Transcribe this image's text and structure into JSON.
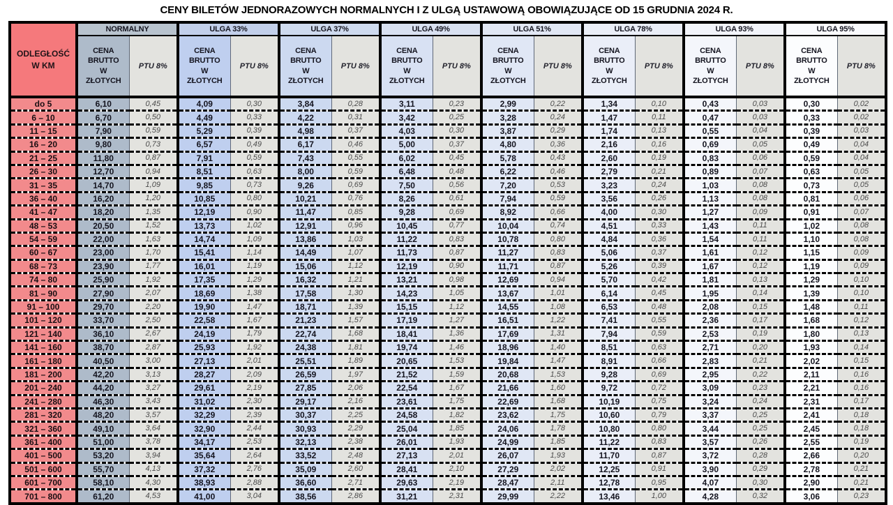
{
  "title": "CENY BILETÓW JEDNORAZOWYCH NORMALNYCH I Z ULGĄ USTAWOWĄ OBOWIĄZUJĄCE OD 15 GRUDNIA 2024 R.",
  "colors": {
    "distance_header_bg": "#f5797c",
    "distance_cell_bg": "#f28a8c",
    "ptu_bg": "#e3e3df",
    "price_text": "#14141f",
    "ptu_text": "#4c4c4c",
    "border": "#000000"
  },
  "table": {
    "distance_label": "ODLEGŁOŚĆ\nW KM",
    "price_label": "CENA\nBRUTTO\nW\nZŁOTYCH",
    "ptu_label": "PTU 8%",
    "groups": [
      {
        "label": "NORMALNY",
        "header_bg": "#b8c3ce",
        "price_bg": "#aebbca"
      },
      {
        "label": "ULGA 33%",
        "header_bg": "#c2cfea",
        "price_bg": "#bfcfef"
      },
      {
        "label": "ULGA 37%",
        "header_bg": "#cedaee",
        "price_bg": "#ccd9f0"
      },
      {
        "label": "ULGA 49%",
        "header_bg": "#d9e1f1",
        "price_bg": "#d8e1f3"
      },
      {
        "label": "ULGA 51%",
        "header_bg": "#e1e7f4",
        "price_bg": "#e0e7f5"
      },
      {
        "label": "ULGA 78%",
        "header_bg": "#eaeef7",
        "price_bg": "#eaeef8"
      },
      {
        "label": "ULGA 93%",
        "header_bg": "#f2f4fa",
        "price_bg": "#f4f6fb"
      },
      {
        "label": "ULGA 95%",
        "header_bg": "#f9fafd",
        "price_bg": "#fcfdfe"
      }
    ],
    "rows": [
      {
        "distance": "do 5",
        "values": [
          "6,10",
          "0,45",
          "4,09",
          "0,30",
          "3,84",
          "0,28",
          "3,11",
          "0,23",
          "2,99",
          "0,22",
          "1,34",
          "0,10",
          "0,43",
          "0,03",
          "0,30",
          "0,02"
        ]
      },
      {
        "distance": "6 – 10",
        "values": [
          "6,70",
          "0,50",
          "4,49",
          "0,33",
          "4,22",
          "0,31",
          "3,42",
          "0,25",
          "3,28",
          "0,24",
          "1,47",
          "0,11",
          "0,47",
          "0,03",
          "0,33",
          "0,02"
        ]
      },
      {
        "distance": "11 – 15",
        "values": [
          "7,90",
          "0,59",
          "5,29",
          "0,39",
          "4,98",
          "0,37",
          "4,03",
          "0,30",
          "3,87",
          "0,29",
          "1,74",
          "0,13",
          "0,55",
          "0,04",
          "0,39",
          "0,03"
        ]
      },
      {
        "distance": "16 – 20",
        "values": [
          "9,80",
          "0,73",
          "6,57",
          "0,49",
          "6,17",
          "0,46",
          "5,00",
          "0,37",
          "4,80",
          "0,36",
          "2,16",
          "0,16",
          "0,69",
          "0,05",
          "0,49",
          "0,04"
        ]
      },
      {
        "distance": "21 – 25",
        "values": [
          "11,80",
          "0,87",
          "7,91",
          "0,59",
          "7,43",
          "0,55",
          "6,02",
          "0,45",
          "5,78",
          "0,43",
          "2,60",
          "0,19",
          "0,83",
          "0,06",
          "0,59",
          "0,04"
        ]
      },
      {
        "distance": "26 – 30",
        "values": [
          "12,70",
          "0,94",
          "8,51",
          "0,63",
          "8,00",
          "0,59",
          "6,48",
          "0,48",
          "6,22",
          "0,46",
          "2,79",
          "0,21",
          "0,89",
          "0,07",
          "0,63",
          "0,05"
        ]
      },
      {
        "distance": "31 – 35",
        "values": [
          "14,70",
          "1,09",
          "9,85",
          "0,73",
          "9,26",
          "0,69",
          "7,50",
          "0,56",
          "7,20",
          "0,53",
          "3,23",
          "0,24",
          "1,03",
          "0,08",
          "0,73",
          "0,05"
        ]
      },
      {
        "distance": "36 – 40",
        "values": [
          "16,20",
          "1,20",
          "10,85",
          "0,80",
          "10,21",
          "0,76",
          "8,26",
          "0,61",
          "7,94",
          "0,59",
          "3,56",
          "0,26",
          "1,13",
          "0,08",
          "0,81",
          "0,06"
        ]
      },
      {
        "distance": "41 – 47",
        "values": [
          "18,20",
          "1,35",
          "12,19",
          "0,90",
          "11,47",
          "0,85",
          "9,28",
          "0,69",
          "8,92",
          "0,66",
          "4,00",
          "0,30",
          "1,27",
          "0,09",
          "0,91",
          "0,07"
        ]
      },
      {
        "distance": "48 – 53",
        "values": [
          "20,50",
          "1,52",
          "13,73",
          "1,02",
          "12,91",
          "0,96",
          "10,45",
          "0,77",
          "10,04",
          "0,74",
          "4,51",
          "0,33",
          "1,43",
          "0,11",
          "1,02",
          "0,08"
        ]
      },
      {
        "distance": "54 – 59",
        "values": [
          "22,00",
          "1,63",
          "14,74",
          "1,09",
          "13,86",
          "1,03",
          "11,22",
          "0,83",
          "10,78",
          "0,80",
          "4,84",
          "0,36",
          "1,54",
          "0,11",
          "1,10",
          "0,08"
        ]
      },
      {
        "distance": "60 – 67",
        "values": [
          "23,00",
          "1,70",
          "15,41",
          "1,14",
          "14,49",
          "1,07",
          "11,73",
          "0,87",
          "11,27",
          "0,83",
          "5,06",
          "0,37",
          "1,61",
          "0,12",
          "1,15",
          "0,09"
        ]
      },
      {
        "distance": "68 – 73",
        "values": [
          "23,90",
          "1,77",
          "16,01",
          "1,19",
          "15,06",
          "1,12",
          "12,19",
          "0,90",
          "11,71",
          "0,87",
          "5,26",
          "0,39",
          "1,67",
          "0,12",
          "1,19",
          "0,09"
        ]
      },
      {
        "distance": "74 – 80",
        "values": [
          "25,90",
          "1,92",
          "17,35",
          "1,29",
          "16,32",
          "1,21",
          "13,21",
          "0,98",
          "12,69",
          "0,94",
          "5,70",
          "0,42",
          "1,81",
          "0,13",
          "1,29",
          "0,10"
        ]
      },
      {
        "distance": "81 – 90",
        "values": [
          "27,90",
          "2,07",
          "18,69",
          "1,38",
          "17,58",
          "1,30",
          "14,23",
          "1,05",
          "13,67",
          "1,01",
          "6,14",
          "0,45",
          "1,95",
          "0,14",
          "1,39",
          "0,10"
        ]
      },
      {
        "distance": "91 – 100",
        "values": [
          "29,70",
          "2,20",
          "19,90",
          "1,47",
          "18,71",
          "1,39",
          "15,15",
          "1,12",
          "14,55",
          "1,08",
          "6,53",
          "0,48",
          "2,08",
          "0,15",
          "1,48",
          "0,11"
        ]
      },
      {
        "distance": "101 – 120",
        "values": [
          "33,70",
          "2,50",
          "22,58",
          "1,67",
          "21,23",
          "1,57",
          "17,19",
          "1,27",
          "16,51",
          "1,22",
          "7,41",
          "0,55",
          "2,36",
          "0,17",
          "1,68",
          "0,12"
        ]
      },
      {
        "distance": "121 – 140",
        "values": [
          "36,10",
          "2,67",
          "24,19",
          "1,79",
          "22,74",
          "1,68",
          "18,41",
          "1,36",
          "17,69",
          "1,31",
          "7,94",
          "0,59",
          "2,53",
          "0,19",
          "1,80",
          "0,13"
        ]
      },
      {
        "distance": "141 – 160",
        "values": [
          "38,70",
          "2,87",
          "25,93",
          "1,92",
          "24,38",
          "1,81",
          "19,74",
          "1,46",
          "18,96",
          "1,40",
          "8,51",
          "0,63",
          "2,71",
          "0,20",
          "1,93",
          "0,14"
        ]
      },
      {
        "distance": "161 – 180",
        "values": [
          "40,50",
          "3,00",
          "27,13",
          "2,01",
          "25,51",
          "1,89",
          "20,65",
          "1,53",
          "19,84",
          "1,47",
          "8,91",
          "0,66",
          "2,83",
          "0,21",
          "2,02",
          "0,15"
        ]
      },
      {
        "distance": "181 – 200",
        "values": [
          "42,20",
          "3,13",
          "28,27",
          "2,09",
          "26,59",
          "1,97",
          "21,52",
          "1,59",
          "20,68",
          "1,53",
          "9,28",
          "0,69",
          "2,95",
          "0,22",
          "2,11",
          "0,16"
        ]
      },
      {
        "distance": "201 – 240",
        "values": [
          "44,20",
          "3,27",
          "29,61",
          "2,19",
          "27,85",
          "2,06",
          "22,54",
          "1,67",
          "21,66",
          "1,60",
          "9,72",
          "0,72",
          "3,09",
          "0,23",
          "2,21",
          "0,16"
        ]
      },
      {
        "distance": "241 – 280",
        "values": [
          "46,30",
          "3,43",
          "31,02",
          "2,30",
          "29,17",
          "2,16",
          "23,61",
          "1,75",
          "22,69",
          "1,68",
          "10,19",
          "0,75",
          "3,24",
          "0,24",
          "2,31",
          "0,17"
        ]
      },
      {
        "distance": "281 – 320",
        "values": [
          "48,20",
          "3,57",
          "32,29",
          "2,39",
          "30,37",
          "2,25",
          "24,58",
          "1,82",
          "23,62",
          "1,75",
          "10,60",
          "0,79",
          "3,37",
          "0,25",
          "2,41",
          "0,18"
        ]
      },
      {
        "distance": "321 – 360",
        "values": [
          "49,10",
          "3,64",
          "32,90",
          "2,44",
          "30,93",
          "2,29",
          "25,04",
          "1,85",
          "24,06",
          "1,78",
          "10,80",
          "0,80",
          "3,44",
          "0,25",
          "2,45",
          "0,18"
        ]
      },
      {
        "distance": "361 – 400",
        "values": [
          "51,00",
          "3,78",
          "34,17",
          "2,53",
          "32,13",
          "2,38",
          "26,01",
          "1,93",
          "24,99",
          "1,85",
          "11,22",
          "0,83",
          "3,57",
          "0,26",
          "2,55",
          "0,19"
        ]
      },
      {
        "distance": "401 – 500",
        "values": [
          "53,20",
          "3,94",
          "35,64",
          "2,64",
          "33,52",
          "2,48",
          "27,13",
          "2,01",
          "26,07",
          "1,93",
          "11,70",
          "0,87",
          "3,72",
          "0,28",
          "2,66",
          "0,20"
        ]
      },
      {
        "distance": "501 – 600",
        "values": [
          "55,70",
          "4,13",
          "37,32",
          "2,76",
          "35,09",
          "2,60",
          "28,41",
          "2,10",
          "27,29",
          "2,02",
          "12,25",
          "0,91",
          "3,90",
          "0,29",
          "2,78",
          "0,21"
        ]
      },
      {
        "distance": "601 – 700",
        "values": [
          "58,10",
          "4,30",
          "38,93",
          "2,88",
          "36,60",
          "2,71",
          "29,63",
          "2,19",
          "28,47",
          "2,11",
          "12,78",
          "0,95",
          "4,07",
          "0,30",
          "2,90",
          "0,21"
        ]
      },
      {
        "distance": "701 – 800",
        "values": [
          "61,20",
          "4,53",
          "41,00",
          "3,04",
          "38,56",
          "2,86",
          "31,21",
          "2,31",
          "29,99",
          "2,22",
          "13,46",
          "1,00",
          "4,28",
          "0,32",
          "3,06",
          "0,23"
        ]
      }
    ]
  }
}
